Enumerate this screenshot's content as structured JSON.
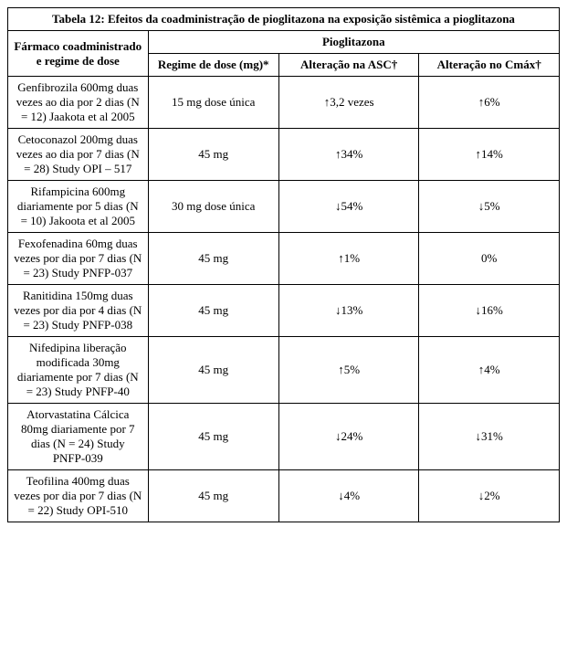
{
  "table": {
    "title": "Tabela 12: Efeitos da coadministração de pioglitazona na exposição sistêmica a pioglitazona",
    "header_drug": "Fármaco coadministrado e regime de dose",
    "header_pio": "Pioglitazona",
    "header_regime": "Regime de dose (mg)*",
    "header_asc": "Alteração na ASC†",
    "header_cmax": "Alteração no Cmáx†",
    "rows": [
      {
        "drug": "Genfibrozila 600mg duas vezes ao dia por 2 dias (N = 12) Jaakota et al 2005",
        "regime": "15 mg dose única",
        "asc": "↑3,2 vezes",
        "cmax": "↑6%"
      },
      {
        "drug": "Cetoconazol 200mg duas vezes ao dia por 7 dias (N = 28) Study OPI – 517",
        "regime": "45 mg",
        "asc": "↑34%",
        "cmax": "↑14%"
      },
      {
        "drug": "Rifampicina 600mg diariamente por 5 dias (N = 10) Jakoota et al 2005",
        "regime": "30 mg dose única",
        "asc": "↓54%",
        "cmax": "↓5%"
      },
      {
        "drug": "Fexofenadina 60mg duas vezes por dia por 7 dias (N = 23) Study PNFP-037",
        "regime": "45 mg",
        "asc": "↑1%",
        "cmax": "0%"
      },
      {
        "drug": "Ranitidina 150mg duas vezes por dia por 4 dias (N = 23) Study PNFP-038",
        "regime": "45 mg",
        "asc": "↓13%",
        "cmax": "↓16%"
      },
      {
        "drug": "Nifedipina liberação modificada 30mg diariamente por 7 dias (N = 23) Study PNFP-40",
        "regime": "45 mg",
        "asc": "↑5%",
        "cmax": "↑4%"
      },
      {
        "drug": "Atorvastatina Cálcica 80mg diariamente por 7 dias (N = 24) Study PNFP-039",
        "regime": "45 mg",
        "asc": "↓24%",
        "cmax": "↓31%"
      },
      {
        "drug": "Teofilina 400mg duas vezes por dia por 7 dias (N = 22) Study OPI-510",
        "regime": "45 mg",
        "asc": "↓4%",
        "cmax": "↓2%"
      }
    ]
  },
  "style": {
    "font_family": "Times New Roman",
    "font_size_pt": 10,
    "border_color": "#000000",
    "background_color": "#ffffff",
    "text_color": "#000000"
  }
}
